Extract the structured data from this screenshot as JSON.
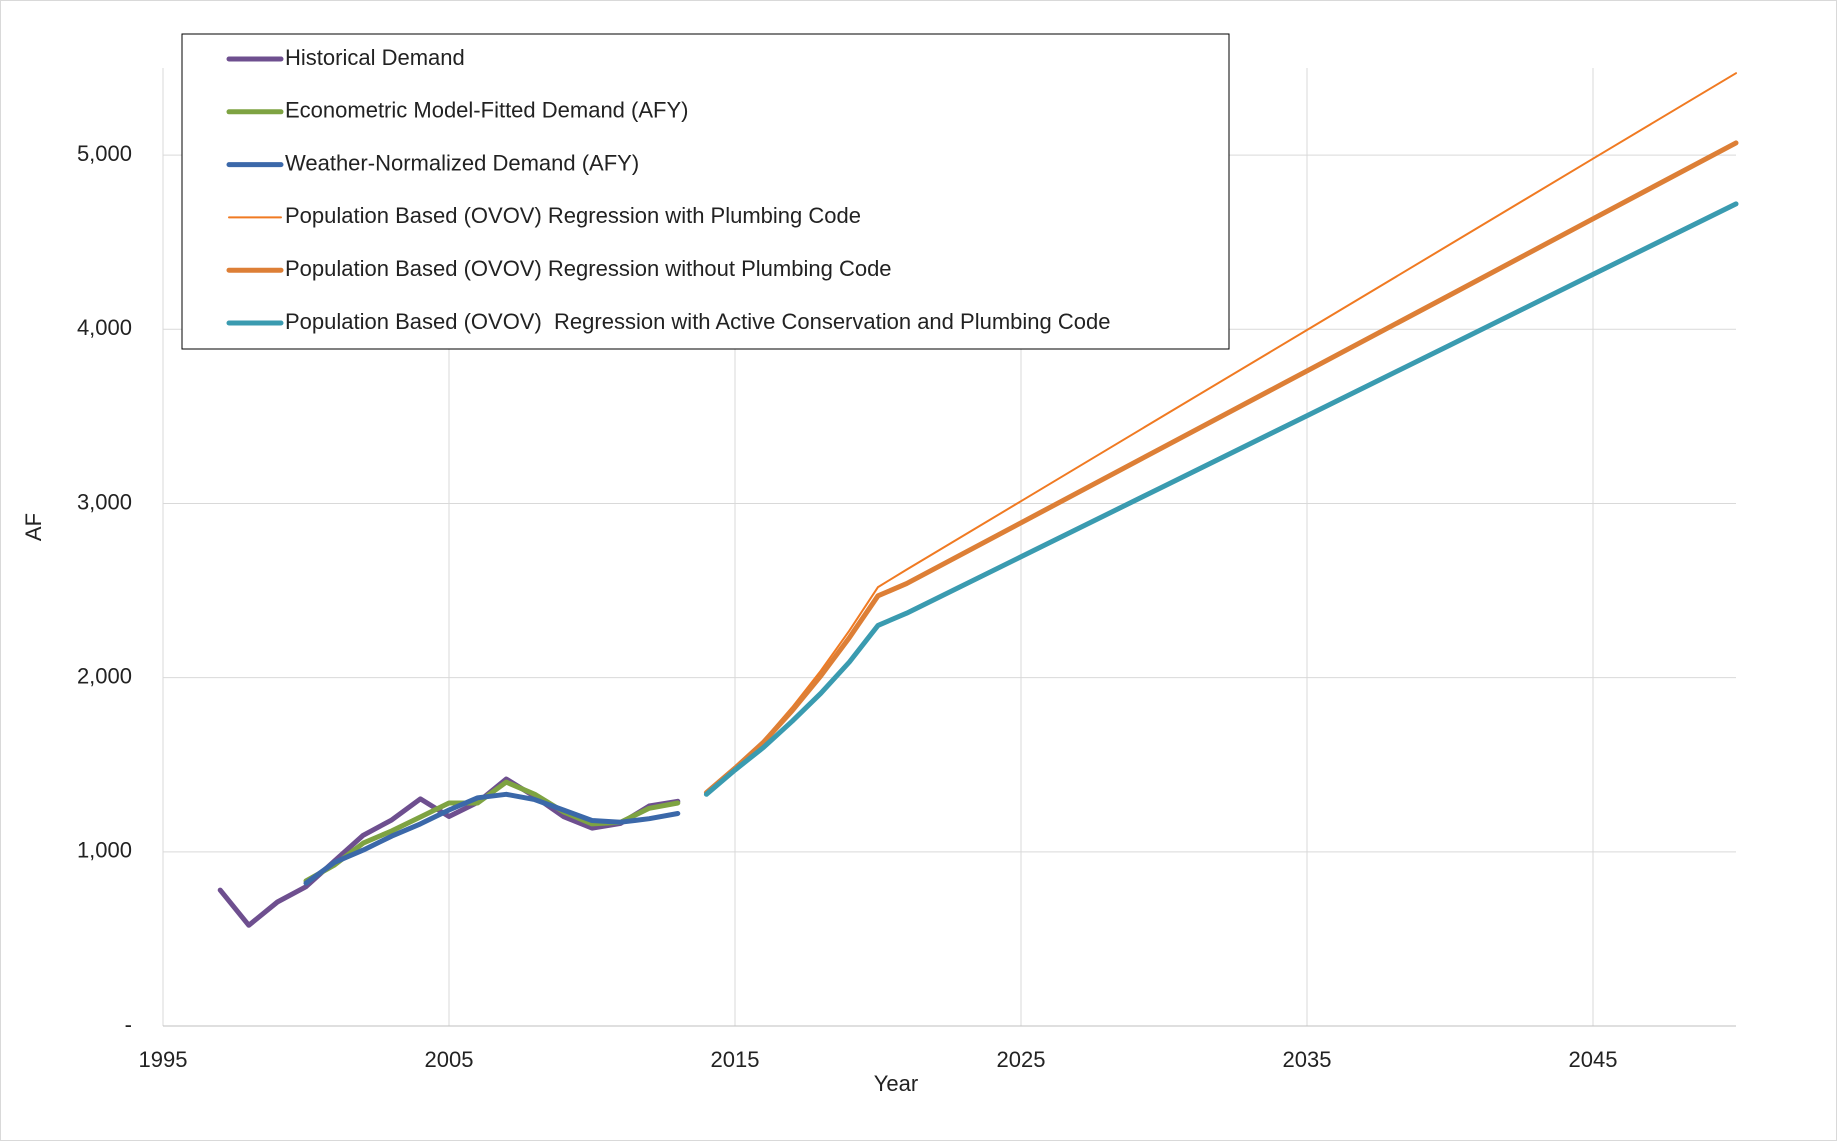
{
  "chart_data": {
    "type": "line",
    "x_label": "Year",
    "y_label": "AF",
    "xlim": [
      1995,
      2050
    ],
    "xticks": [
      1995,
      2005,
      2015,
      2025,
      2035,
      2045
    ],
    "ylim": [
      0,
      5500
    ],
    "yticks": [
      {
        "value": 0,
        "label": "-"
      },
      {
        "value": 1000,
        "label": "1,000"
      },
      {
        "value": 2000,
        "label": "2,000"
      },
      {
        "value": 3000,
        "label": "3,000"
      },
      {
        "value": 4000,
        "label": "4,000"
      },
      {
        "value": 5000,
        "label": "5,000"
      }
    ],
    "grid": true,
    "legend": "top-left",
    "series": [
      {
        "name": "Historical Demand",
        "color": "#6e4f8f",
        "width": 5,
        "x": [
          1997,
          1998,
          1999,
          2000,
          2001,
          2002,
          2003,
          2004,
          2005,
          2006,
          2007,
          2008,
          2009,
          2010,
          2011,
          2012,
          2013
        ],
        "values": [
          780,
          578,
          712,
          800,
          948,
          1095,
          1183,
          1304,
          1203,
          1284,
          1418,
          1317,
          1203,
          1136,
          1163,
          1263,
          1290
        ]
      },
      {
        "name": "Econometric Model-Fitted Demand (AFY)",
        "color": "#7ea342",
        "width": 5,
        "x": [
          2000,
          2001,
          2002,
          2003,
          2004,
          2005,
          2006,
          2007,
          2008,
          2009,
          2010,
          2011,
          2012,
          2013
        ],
        "values": [
          833,
          925,
          1050,
          1120,
          1200,
          1280,
          1280,
          1400,
          1330,
          1230,
          1160,
          1170,
          1250,
          1280
        ]
      },
      {
        "name": "Weather-Normalized Demand (AFY)",
        "color": "#3b68a9",
        "width": 5,
        "x": [
          2000,
          2001,
          2002,
          2003,
          2004,
          2005,
          2006,
          2007,
          2008,
          2009,
          2010,
          2011,
          2012,
          2013
        ],
        "values": [
          820,
          940,
          1010,
          1090,
          1160,
          1240,
          1310,
          1330,
          1300,
          1240,
          1180,
          1170,
          1190,
          1220
        ]
      },
      {
        "name": "Population Based (OVOV) Regression with Plumbing Code",
        "color": "#f07a22",
        "width": 2,
        "x": [
          2014,
          2015,
          2016,
          2017,
          2018,
          2019,
          2020,
          2021,
          2025,
          2030,
          2035,
          2040,
          2045,
          2050
        ],
        "values": [
          1340,
          1480,
          1640,
          1830,
          2040,
          2270,
          2520,
          2620,
          3013,
          3505,
          3996,
          4487,
          4979,
          5470
        ]
      },
      {
        "name": "Population Based (OVOV) Regression without Plumbing Code",
        "color": "#dd7f36",
        "width": 5,
        "x": [
          2014,
          2015,
          2016,
          2017,
          2018,
          2019,
          2020,
          2021,
          2025,
          2030,
          2035,
          2040,
          2045,
          2050
        ],
        "values": [
          1340,
          1480,
          1630,
          1810,
          2010,
          2230,
          2470,
          2540,
          2889,
          3325,
          3761,
          4197,
          4634,
          5070
        ]
      },
      {
        "name": "Population Based (OVOV)  Regression with Active Conservation and Plumbing Code",
        "color": "#3a9bb0",
        "width": 5,
        "x": [
          2014,
          2015,
          2016,
          2017,
          2018,
          2019,
          2020,
          2021,
          2025,
          2030,
          2035,
          2040,
          2045,
          2050
        ],
        "values": [
          1330,
          1470,
          1600,
          1750,
          1910,
          2090,
          2300,
          2370,
          2694,
          3099,
          3504,
          3909,
          4315,
          4720
        ]
      }
    ]
  }
}
